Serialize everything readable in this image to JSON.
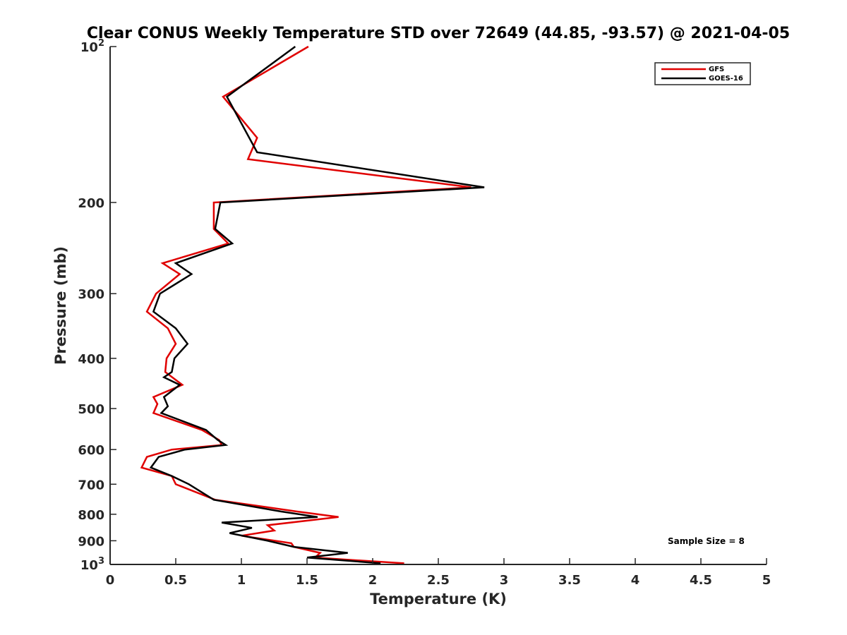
{
  "chart_data": {
    "type": "line",
    "title": "Clear CONUS Weekly Temperature STD over 72649 (44.85, -93.57) @ 2021-04-05",
    "xlabel": "Temperature (K)",
    "ylabel": "Pressure (mb)",
    "xlim": [
      0,
      5
    ],
    "ylim": [
      100,
      1000
    ],
    "yscale": "log",
    "y_reversed": true,
    "x_ticks": [
      "0",
      "0.5",
      "1",
      "1.5",
      "2",
      "2.5",
      "3",
      "3.5",
      "4",
      "4.5",
      "5"
    ],
    "y_ticks": [
      {
        "value": 100,
        "base": "10",
        "exp": "2"
      },
      {
        "value": 200,
        "label": "200"
      },
      {
        "value": 300,
        "label": "300"
      },
      {
        "value": 400,
        "label": "400"
      },
      {
        "value": 500,
        "label": "500"
      },
      {
        "value": 600,
        "label": "600"
      },
      {
        "value": 700,
        "label": "700"
      },
      {
        "value": 800,
        "label": "800"
      },
      {
        "value": 900,
        "label": "900"
      },
      {
        "value": 1000,
        "base": "10",
        "exp": "3"
      }
    ],
    "grid": false,
    "legend_position": "top-right",
    "annotation": "Sample Size = 8",
    "series": [
      {
        "name": "GFS",
        "color": "#e00000",
        "points": [
          [
            1.51,
            100
          ],
          [
            0.86,
            125
          ],
          [
            1.12,
            150
          ],
          [
            1.05,
            165
          ],
          [
            2.75,
            187
          ],
          [
            0.79,
            200
          ],
          [
            0.79,
            225
          ],
          [
            0.9,
            240
          ],
          [
            0.4,
            262
          ],
          [
            0.53,
            275
          ],
          [
            0.35,
            300
          ],
          [
            0.28,
            325
          ],
          [
            0.44,
            350
          ],
          [
            0.5,
            375
          ],
          [
            0.43,
            400
          ],
          [
            0.42,
            425
          ],
          [
            0.55,
            450
          ],
          [
            0.33,
            475
          ],
          [
            0.36,
            490
          ],
          [
            0.33,
            510
          ],
          [
            0.7,
            550
          ],
          [
            0.83,
            575
          ],
          [
            0.85,
            588
          ],
          [
            0.47,
            600
          ],
          [
            0.28,
            620
          ],
          [
            0.24,
            650
          ],
          [
            0.47,
            675
          ],
          [
            0.5,
            700
          ],
          [
            0.8,
            750
          ],
          [
            1.42,
            790
          ],
          [
            1.74,
            810
          ],
          [
            1.2,
            840
          ],
          [
            1.25,
            860
          ],
          [
            1.0,
            880
          ],
          [
            1.38,
            910
          ],
          [
            1.4,
            925
          ],
          [
            1.6,
            950
          ],
          [
            1.56,
            970
          ],
          [
            2.24,
            995
          ]
        ]
      },
      {
        "name": "GOES-16",
        "color": "#000000",
        "points": [
          [
            1.41,
            100
          ],
          [
            0.89,
            125
          ],
          [
            1.12,
            160
          ],
          [
            2.85,
            187
          ],
          [
            0.84,
            200
          ],
          [
            0.8,
            225
          ],
          [
            0.93,
            240
          ],
          [
            0.5,
            262
          ],
          [
            0.62,
            275
          ],
          [
            0.38,
            300
          ],
          [
            0.33,
            325
          ],
          [
            0.5,
            350
          ],
          [
            0.59,
            375
          ],
          [
            0.49,
            400
          ],
          [
            0.47,
            425
          ],
          [
            0.41,
            435
          ],
          [
            0.53,
            450
          ],
          [
            0.41,
            475
          ],
          [
            0.44,
            495
          ],
          [
            0.39,
            510
          ],
          [
            0.73,
            550
          ],
          [
            0.82,
            575
          ],
          [
            0.88,
            588
          ],
          [
            0.57,
            600
          ],
          [
            0.37,
            620
          ],
          [
            0.31,
            650
          ],
          [
            0.47,
            675
          ],
          [
            0.6,
            700
          ],
          [
            0.79,
            750
          ],
          [
            1.3,
            790
          ],
          [
            1.58,
            810
          ],
          [
            0.85,
            830
          ],
          [
            1.08,
            850
          ],
          [
            0.91,
            870
          ],
          [
            1.2,
            900
          ],
          [
            1.4,
            925
          ],
          [
            1.81,
            950
          ],
          [
            1.5,
            970
          ],
          [
            2.06,
            995
          ]
        ]
      }
    ]
  }
}
